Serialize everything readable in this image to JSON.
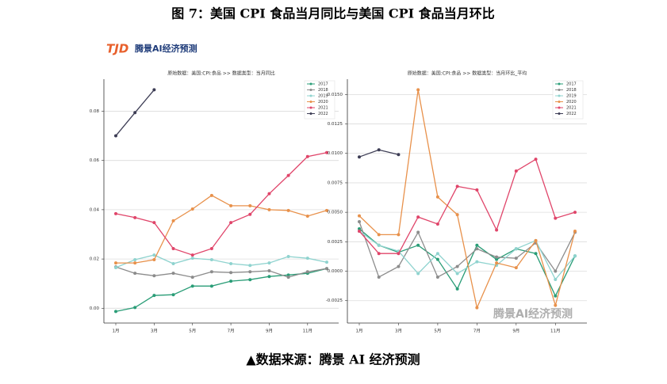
{
  "figure_title": "图 7：美国 CPI 食品当月同比与美国 CPI 食品当月环比",
  "logo": {
    "mark": "TJD",
    "text": "腾景AI经济预测"
  },
  "watermark": "腾景AI经济预测",
  "source": "▲数据来源：腾景 AI 经济预测",
  "chart_data": [
    {
      "type": "line",
      "title": "原始数据：美国:CPI:食品 >> 数据类型：当月同比",
      "categories": [
        "1月",
        null,
        "3月",
        null,
        "5月",
        null,
        "7月",
        null,
        "9月",
        null,
        "11月",
        null
      ],
      "ylim": [
        -0.006,
        0.093
      ],
      "yticks": [
        {
          "value": 0,
          "label": "0.00"
        },
        {
          "value": 0.02,
          "label": "0.02"
        },
        {
          "value": 0.04,
          "label": "0.04"
        },
        {
          "value": 0.06,
          "label": "0.06"
        },
        {
          "value": 0.08,
          "label": "0.08"
        }
      ],
      "grid": true,
      "legend": "upper right",
      "series": [
        {
          "name": "2017",
          "color": "#2a9d77",
          "values": [
            -0.0013,
            0.0003,
            0.0052,
            0.0055,
            0.009,
            0.009,
            0.011,
            0.0116,
            0.0129,
            0.0135,
            0.0142,
            0.0161
          ]
        },
        {
          "name": "2018",
          "color": "#8c8c8c",
          "values": [
            0.0168,
            0.0142,
            0.0132,
            0.0142,
            0.0126,
            0.0148,
            0.0145,
            0.0148,
            0.0152,
            0.0126,
            0.0148,
            0.0161
          ]
        },
        {
          "name": "2019",
          "color": "#8fd3cf",
          "values": [
            0.0165,
            0.0197,
            0.0216,
            0.0181,
            0.0203,
            0.0197,
            0.0181,
            0.0174,
            0.0184,
            0.021,
            0.0203,
            0.0187
          ]
        },
        {
          "name": "2020",
          "color": "#e8914b",
          "values": [
            0.0184,
            0.0184,
            0.0197,
            0.0355,
            0.0403,
            0.0458,
            0.0416,
            0.0416,
            0.04,
            0.0397,
            0.0374,
            0.0397
          ]
        },
        {
          "name": "2021",
          "color": "#e0456a",
          "values": [
            0.0384,
            0.0368,
            0.0348,
            0.0242,
            0.0216,
            0.0242,
            0.0348,
            0.0381,
            0.0465,
            0.0539,
            0.0616,
            0.0632
          ]
        },
        {
          "name": "2022",
          "color": "#3d3d55",
          "values": [
            0.07,
            0.0794,
            0.0887,
            null,
            null,
            null,
            null,
            null,
            null,
            null,
            null,
            null
          ]
        }
      ]
    },
    {
      "type": "line",
      "title": "原始数据：美国:CPI:食品 >> 数据类型：当月环比_平均",
      "categories": [
        "1月",
        null,
        "3月",
        null,
        "5月",
        null,
        "7月",
        null,
        "9月",
        null,
        "11月",
        null
      ],
      "ylim": [
        -0.0044,
        0.0163
      ],
      "yticks": [
        {
          "value": -0.0025,
          "label": "-0.0025"
        },
        {
          "value": 0,
          "label": "0.0000"
        },
        {
          "value": 0.0025,
          "label": "0.0025"
        },
        {
          "value": 0.005,
          "label": "0.0050"
        },
        {
          "value": 0.0075,
          "label": "0.0075"
        },
        {
          "value": 0.01,
          "label": "0.0100"
        },
        {
          "value": 0.0125,
          "label": "0.0125"
        },
        {
          "value": 0.015,
          "label": "0.0150"
        }
      ],
      "grid": true,
      "legend": "upper right",
      "series": [
        {
          "name": "2017",
          "color": "#2a9d77",
          "values": [
            0.0036,
            0.0022,
            0.0016,
            0.0022,
            0.001,
            -0.0015,
            0.0022,
            0.001,
            0.0019,
            0.0015,
            -0.0021,
            0.0013
          ]
        },
        {
          "name": "2018",
          "color": "#8c8c8c",
          "values": [
            0.0042,
            -0.0005,
            0.0004,
            0.0033,
            -0.0005,
            0.0004,
            0.0019,
            0.0012,
            0.0011,
            0.0024,
            0,
            0.0033
          ]
        },
        {
          "name": "2019",
          "color": "#8fd3cf",
          "values": [
            0.0034,
            0.0022,
            0.0017,
            -0.0002,
            0.0015,
            -0.0002,
            0.0008,
            0.0005,
            0.0019,
            0.0026,
            -0.0007,
            0.0013
          ]
        },
        {
          "name": "2020",
          "color": "#e8914b",
          "values": [
            0.0047,
            0.0031,
            0.0031,
            0.0154,
            0.0063,
            0.0048,
            -0.0031,
            0.0007,
            0.0003,
            0.0026,
            -0.0029,
            0.0034
          ]
        },
        {
          "name": "2021",
          "color": "#e0456a",
          "values": [
            0.0034,
            0.0015,
            0.0015,
            0.0046,
            0.004,
            0.0072,
            0.0069,
            0.0035,
            0.0085,
            0.0095,
            0.0045,
            0.005
          ]
        },
        {
          "name": "2022",
          "color": "#3d3d55",
          "values": [
            0.0097,
            0.0103,
            0.0099,
            null,
            null,
            null,
            null,
            null,
            null,
            null,
            null,
            null
          ]
        }
      ]
    }
  ]
}
